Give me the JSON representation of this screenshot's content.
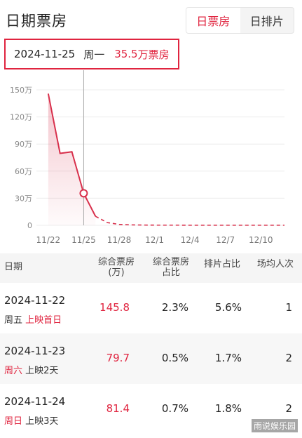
{
  "header": {
    "title": "日期票房",
    "tabs": [
      {
        "label": "日票房",
        "active": true
      },
      {
        "label": "日排片",
        "active": false
      }
    ]
  },
  "tooltip": {
    "date": "2024-11-25",
    "weekday": "周一",
    "value": "35.5",
    "unit": "万票房"
  },
  "chart_data": {
    "type": "line",
    "x": [
      "11/21",
      "11/22",
      "11/23",
      "11/24",
      "11/25",
      "11/26",
      "11/27",
      "11/28",
      "11/29",
      "11/30",
      "12/1",
      "12/2",
      "12/3",
      "12/4",
      "12/5",
      "12/6",
      "12/7",
      "12/8",
      "12/9",
      "12/10",
      "12/11",
      "12/12"
    ],
    "values": [
      null,
      145.8,
      79.7,
      81.4,
      35.5,
      10,
      3,
      1,
      0.5,
      0.3,
      0.2,
      0.2,
      0.2,
      0.1,
      0.1,
      0.1,
      0.1,
      0.1,
      0.1,
      0.1,
      0.1,
      0.1
    ],
    "projected_from": "11/26",
    "highlight": "11/25",
    "y_ticks": [
      "150万",
      "120万",
      "90万",
      "60万",
      "30万",
      "0"
    ],
    "y_tick_values": [
      150,
      120,
      90,
      60,
      30,
      0
    ],
    "x_ticks": [
      "11/22",
      "11/25",
      "11/28",
      "12/1",
      "12/4",
      "12/7",
      "12/10"
    ],
    "ylim": [
      0,
      150
    ],
    "grid": true,
    "color": "#d8304c"
  },
  "table": {
    "headers": {
      "date": "日期",
      "box": "综合票房\n(万)",
      "share": "综合票房\n占比",
      "screen": "排片占比",
      "avg": "场均人次"
    },
    "rows": [
      {
        "date": "2024-11-22",
        "weekday": "周五",
        "weekday_red": false,
        "note": "上映首日",
        "note_red": true,
        "box": "145.8",
        "share": "2.3%",
        "screen": "5.6%",
        "avg": "1"
      },
      {
        "date": "2024-11-23",
        "weekday": "周六",
        "weekday_red": true,
        "note": "上映2天",
        "note_red": false,
        "box": "79.7",
        "share": "0.5%",
        "screen": "1.7%",
        "avg": "2"
      },
      {
        "date": "2024-11-24",
        "weekday": "周日",
        "weekday_red": true,
        "note": "上映3天",
        "note_red": false,
        "box": "81.4",
        "share": "0.7%",
        "screen": "1.8%",
        "avg": "2"
      }
    ]
  },
  "watermark": "雨说娱乐园"
}
